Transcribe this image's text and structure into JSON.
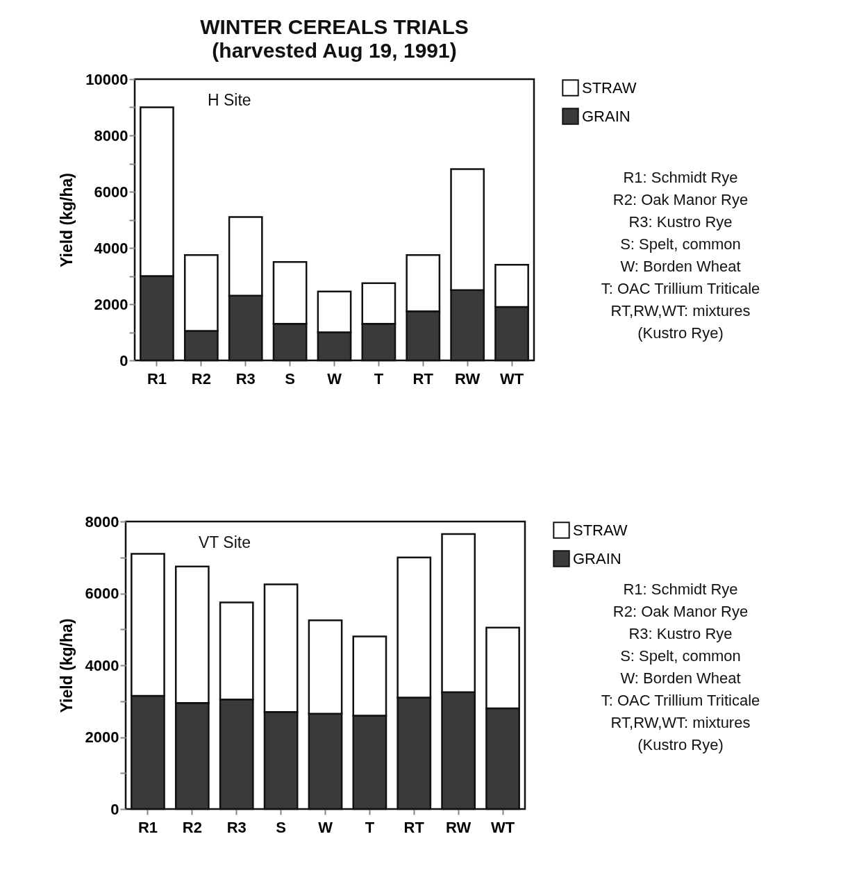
{
  "chart_data": [
    {
      "type": "bar",
      "title": "WINTER CEREALS TRIALS",
      "subtitle": "(harvested Aug 19, 1991)",
      "ylabel": "Yield (kg/ha)",
      "categories": [
        "R1",
        "R2",
        "R3",
        "S",
        "W",
        "T",
        "RT",
        "RW",
        "WT"
      ],
      "stacked": true,
      "series": [
        {
          "name": "GRAIN",
          "color": "#3a3a3a",
          "values": [
            3000,
            1050,
            2300,
            1300,
            1000,
            1300,
            1750,
            2500,
            1900
          ]
        },
        {
          "name": "STRAW",
          "color": "#ffffff",
          "values": [
            6000,
            2700,
            2800,
            2200,
            1450,
            1450,
            2000,
            4300,
            1500
          ]
        }
      ],
      "ylim": [
        0,
        10000
      ],
      "yticks": [
        0,
        {
          "value": 1000,
          "label": null
        },
        2000,
        {
          "value": 3000,
          "label": null
        },
        4000,
        {
          "value": 5000,
          "label": null
        },
        6000,
        {
          "value": 7000,
          "label": null
        },
        8000,
        {
          "value": 9000,
          "label": null
        },
        10000
      ],
      "legend": "right",
      "grid": false,
      "annotations": [
        "H Site",
        "R1: Schmidt Rye",
        "R2: Oak Manor Rye",
        "R3: Kustro Rye",
        "S: Spelt, common",
        "W: Borden Wheat",
        "T: OAC Trillium Triticale",
        "RT,RW,WT: mixtures (Kustro Rye)"
      ]
    },
    {
      "type": "bar",
      "ylabel": "Yield (kg/ha)",
      "categories": [
        "R1",
        "R2",
        "R3",
        "S",
        "W",
        "T",
        "RT",
        "RW",
        "WT"
      ],
      "stacked": true,
      "series": [
        {
          "name": "GRAIN",
          "color": "#3a3a3a",
          "values": [
            3150,
            2950,
            3050,
            2700,
            2650,
            2600,
            3100,
            3250,
            2800
          ]
        },
        {
          "name": "STRAW",
          "color": "#ffffff",
          "values": [
            3950,
            3800,
            2700,
            3550,
            2600,
            2200,
            3900,
            4400,
            2250
          ]
        }
      ],
      "ylim": [
        0,
        8000
      ],
      "yticks": [
        0,
        {
          "value": 1000,
          "label": null
        },
        2000,
        {
          "value": 3000,
          "label": null
        },
        4000,
        {
          "value": 5000,
          "label": null
        },
        6000,
        {
          "value": 7000,
          "label": null
        },
        8000
      ],
      "legend": "right",
      "grid": false,
      "annotations": [
        "VT Site",
        "R1: Schmidt Rye",
        "R2: Oak Manor Rye",
        "R3: Kustro Rye",
        "S: Spelt, common",
        "W: Borden Wheat",
        "T: OAC Trillium Triticale",
        "RT,RW,WT: mixtures (Kustro Rye)"
      ]
    }
  ]
}
